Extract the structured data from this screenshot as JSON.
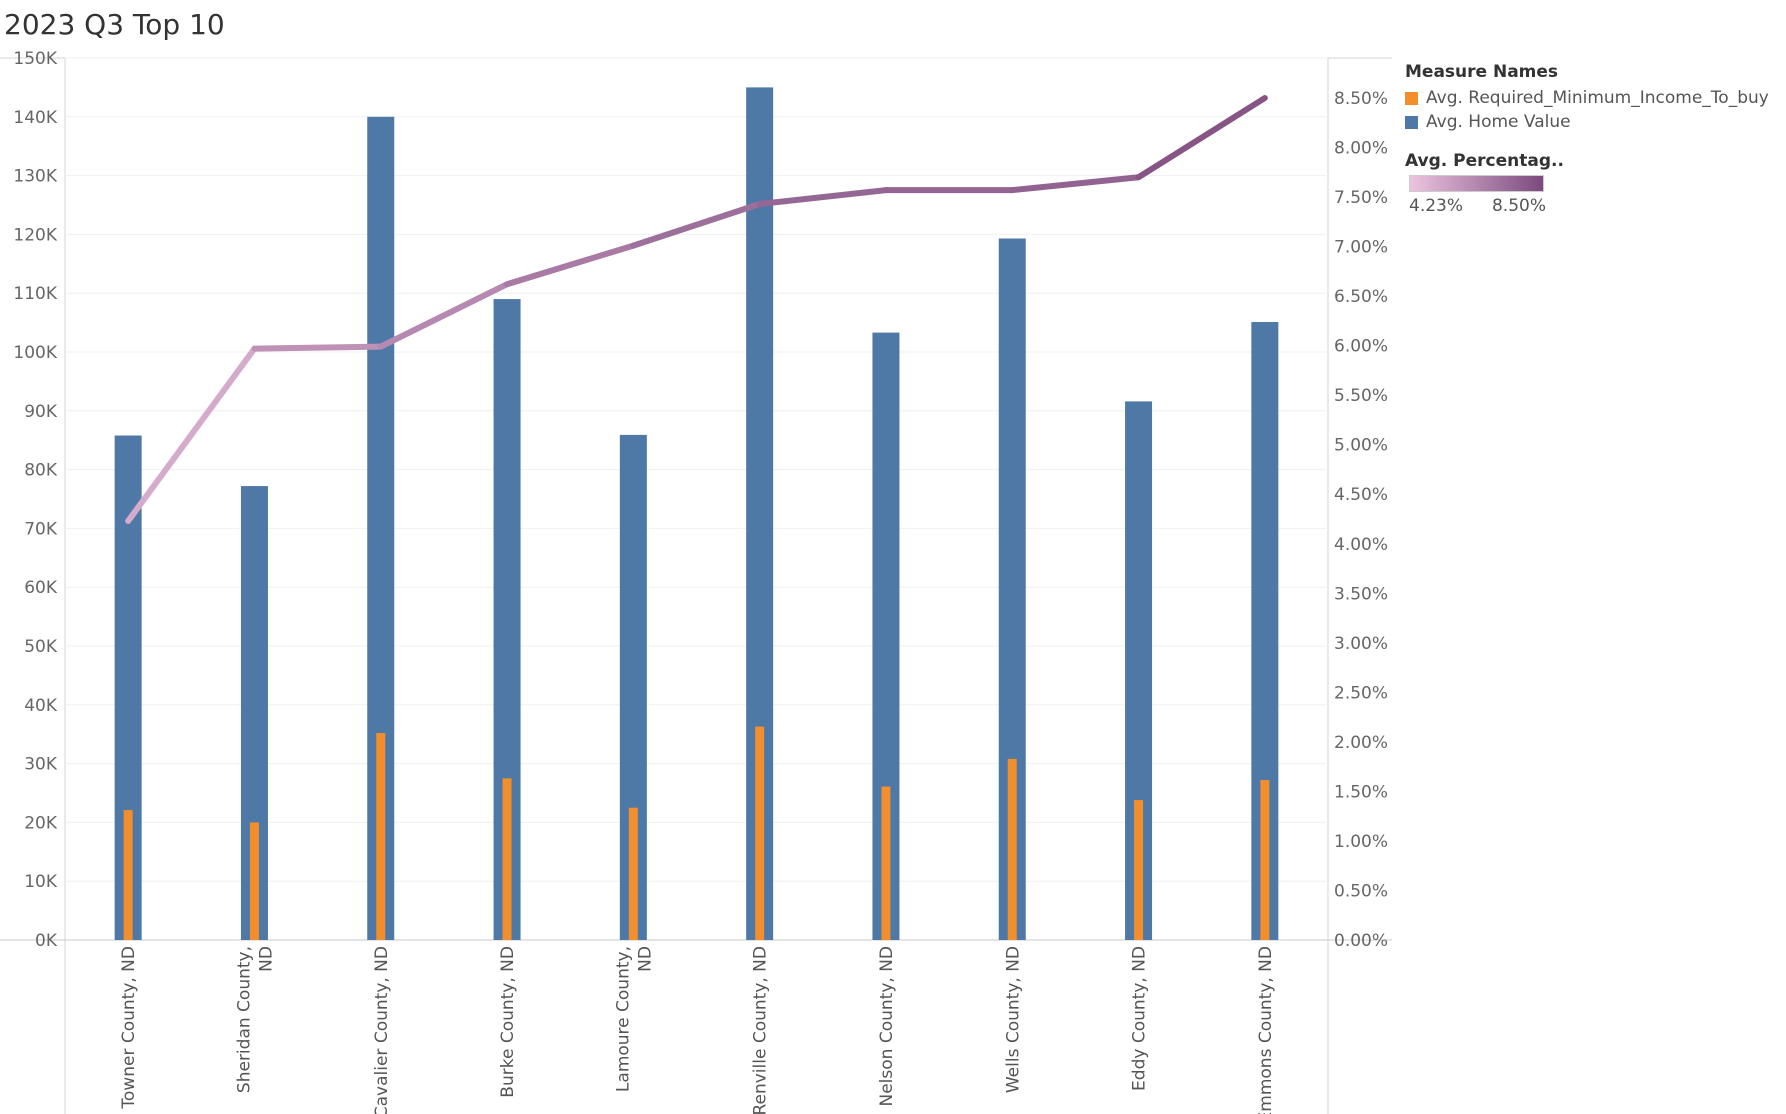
{
  "title": "2023 Q3 Top 10",
  "legend": {
    "measures_title": "Measure Names",
    "items": [
      {
        "label": "Avg. Required_Minimum_Income_To_buy",
        "color": "#f28e2b"
      },
      {
        "label": "Avg. Home Value",
        "color": "#4e79a7"
      }
    ],
    "color_title": "Avg. Percentag..",
    "color_min": "4.23%",
    "color_max": "8.50%",
    "color_low": "#ecc4e0",
    "color_high": "#7b4a7d"
  },
  "chart_data": {
    "type": "bar",
    "categories": [
      [
        "Towner County, ND"
      ],
      [
        "Sheridan County,",
        "ND"
      ],
      [
        "Cavalier County, ND"
      ],
      [
        "Burke County, ND"
      ],
      [
        "Lamoure County,",
        "ND"
      ],
      [
        "Renville County, ND"
      ],
      [
        "Nelson County, ND"
      ],
      [
        "Wells County, ND"
      ],
      [
        "Eddy County, ND"
      ],
      [
        "Emmons County, ND"
      ]
    ],
    "series": [
      {
        "name": "Avg. Home Value",
        "color": "#4e79a7",
        "values": [
          85800,
          77200,
          140000,
          109000,
          85900,
          145000,
          103300,
          119300,
          91600,
          105100
        ]
      },
      {
        "name": "Avg. Required_Minimum_Income_To_buy",
        "color": "#f28e2b",
        "values": [
          22100,
          20000,
          35200,
          27500,
          22500,
          36300,
          26100,
          30800,
          23800,
          27200
        ]
      }
    ],
    "line": {
      "name": "Avg. Percentag..",
      "values": [
        4.23,
        5.97,
        5.99,
        6.62,
        7.01,
        7.43,
        7.57,
        7.57,
        7.7,
        8.5
      ]
    },
    "y_left": {
      "ticks": [
        "0K",
        "10K",
        "20K",
        "30K",
        "40K",
        "50K",
        "60K",
        "70K",
        "80K",
        "90K",
        "100K",
        "110K",
        "120K",
        "130K",
        "140K",
        "150K"
      ],
      "min": 0,
      "max": 150000,
      "step": 10000
    },
    "y_right": {
      "ticks": [
        "0.00%",
        "0.50%",
        "1.00%",
        "1.50%",
        "2.00%",
        "2.50%",
        "3.00%",
        "3.50%",
        "4.00%",
        "4.50%",
        "5.00%",
        "5.50%",
        "6.00%",
        "6.50%",
        "7.00%",
        "7.50%",
        "8.00%",
        "8.50%"
      ],
      "min": 0,
      "max": 8.5,
      "step": 0.5
    },
    "grid": true
  }
}
